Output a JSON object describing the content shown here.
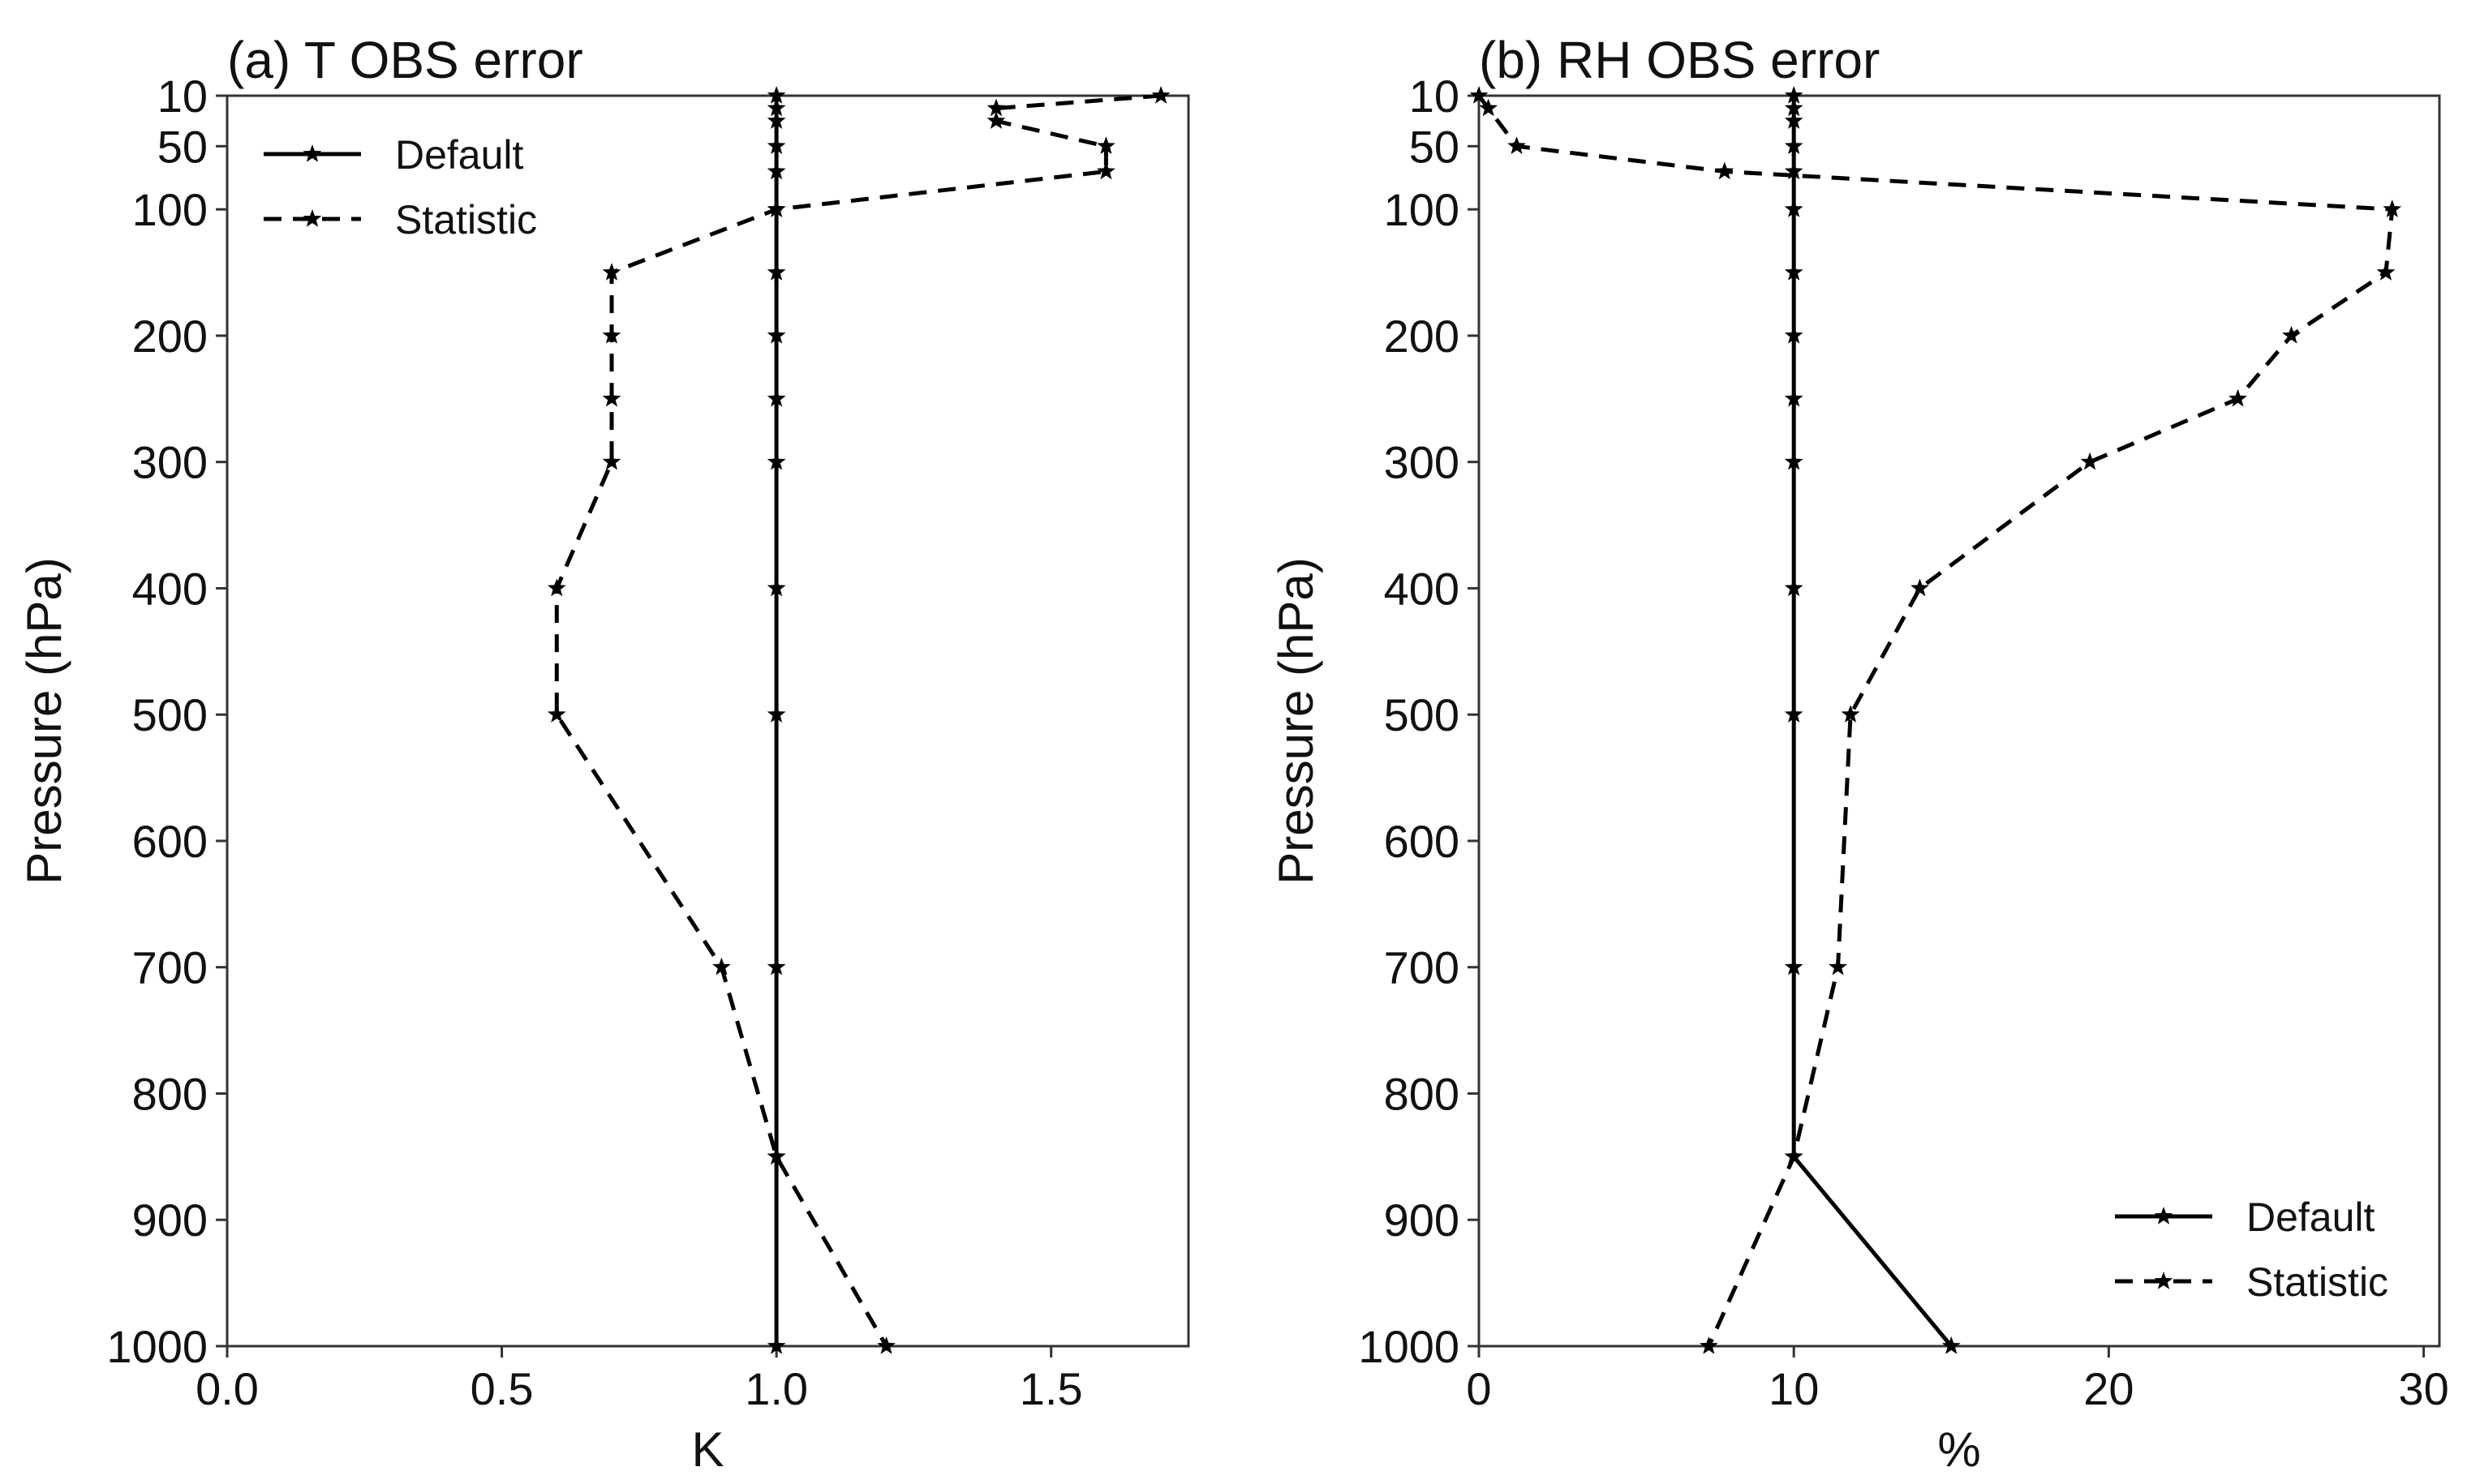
{
  "chart_data": [
    {
      "type": "line",
      "title": "(a) T OBS error",
      "xlabel": "K",
      "ylabel": "Pressure (hPa)",
      "xlim": [
        0.0,
        1.75
      ],
      "ylim": [
        1000,
        10
      ],
      "y_inverted": true,
      "x_ticks": [
        0.0,
        0.5,
        1.0,
        1.5
      ],
      "x_tick_labels": [
        "0.0",
        "0.5",
        "1.0",
        "1.5"
      ],
      "y_ticks": [
        10,
        50,
        100,
        200,
        300,
        400,
        500,
        600,
        700,
        800,
        900,
        1000
      ],
      "y_tick_labels": [
        "10",
        "50",
        "100",
        "200",
        "300",
        "400",
        "500",
        "600",
        "700",
        "800",
        "900",
        "1000"
      ],
      "grid": false,
      "legend": {
        "position": "top-left",
        "entries": [
          "Default",
          "Statistic"
        ]
      },
      "series": [
        {
          "name": "Default",
          "style": "solid-star",
          "points": [
            {
              "x": 1.0,
              "y": 10
            },
            {
              "x": 1.0,
              "y": 20
            },
            {
              "x": 1.0,
              "y": 30
            },
            {
              "x": 1.0,
              "y": 50
            },
            {
              "x": 1.0,
              "y": 70
            },
            {
              "x": 1.0,
              "y": 100
            },
            {
              "x": 1.0,
              "y": 150
            },
            {
              "x": 1.0,
              "y": 200
            },
            {
              "x": 1.0,
              "y": 250
            },
            {
              "x": 1.0,
              "y": 300
            },
            {
              "x": 1.0,
              "y": 400
            },
            {
              "x": 1.0,
              "y": 500
            },
            {
              "x": 1.0,
              "y": 700
            },
            {
              "x": 1.0,
              "y": 850
            },
            {
              "x": 1.0,
              "y": 1000
            }
          ]
        },
        {
          "name": "Statistic",
          "style": "dashed-star",
          "points": [
            {
              "x": 1.7,
              "y": 10
            },
            {
              "x": 1.4,
              "y": 20
            },
            {
              "x": 1.4,
              "y": 30
            },
            {
              "x": 1.6,
              "y": 50
            },
            {
              "x": 1.6,
              "y": 70
            },
            {
              "x": 1.0,
              "y": 100
            },
            {
              "x": 0.7,
              "y": 150
            },
            {
              "x": 0.7,
              "y": 200
            },
            {
              "x": 0.7,
              "y": 250
            },
            {
              "x": 0.7,
              "y": 300
            },
            {
              "x": 0.6,
              "y": 400
            },
            {
              "x": 0.6,
              "y": 500
            },
            {
              "x": 0.9,
              "y": 700
            },
            {
              "x": 1.0,
              "y": 850
            },
            {
              "x": 1.2,
              "y": 1000
            }
          ]
        }
      ]
    },
    {
      "type": "line",
      "title": "(b) RH OBS error",
      "xlabel": "%",
      "ylabel": "Pressure (hPa)",
      "xlim": [
        0,
        30.5
      ],
      "ylim": [
        1000,
        10
      ],
      "y_inverted": true,
      "x_ticks": [
        0,
        10,
        20,
        30
      ],
      "x_tick_labels": [
        "0",
        "10",
        "20",
        "30"
      ],
      "y_ticks": [
        10,
        50,
        100,
        200,
        300,
        400,
        500,
        600,
        700,
        800,
        900,
        1000
      ],
      "y_tick_labels": [
        "10",
        "50",
        "100",
        "200",
        "300",
        "400",
        "500",
        "600",
        "700",
        "800",
        "900",
        "1000"
      ],
      "grid": false,
      "legend": {
        "position": "bottom-right",
        "entries": [
          "Default",
          "Statistic"
        ]
      },
      "series": [
        {
          "name": "Default",
          "style": "solid-star",
          "points": [
            {
              "x": 10,
              "y": 10
            },
            {
              "x": 10,
              "y": 20
            },
            {
              "x": 10,
              "y": 30
            },
            {
              "x": 10,
              "y": 50
            },
            {
              "x": 10,
              "y": 70
            },
            {
              "x": 10,
              "y": 100
            },
            {
              "x": 10,
              "y": 150
            },
            {
              "x": 10,
              "y": 200
            },
            {
              "x": 10,
              "y": 250
            },
            {
              "x": 10,
              "y": 300
            },
            {
              "x": 10,
              "y": 400
            },
            {
              "x": 10,
              "y": 500
            },
            {
              "x": 10,
              "y": 700
            },
            {
              "x": 10,
              "y": 850
            },
            {
              "x": 15,
              "y": 1000
            }
          ]
        },
        {
          "name": "Statistic",
          "style": "dashed-star",
          "points": [
            {
              "x": 0.0,
              "y": 10
            },
            {
              "x": 0.3,
              "y": 20
            },
            {
              "x": 1.2,
              "y": 50
            },
            {
              "x": 7.8,
              "y": 70
            },
            {
              "x": 29.0,
              "y": 100
            },
            {
              "x": 28.8,
              "y": 150
            },
            {
              "x": 25.8,
              "y": 200
            },
            {
              "x": 24.1,
              "y": 250
            },
            {
              "x": 19.4,
              "y": 300
            },
            {
              "x": 14.0,
              "y": 400
            },
            {
              "x": 11.8,
              "y": 500
            },
            {
              "x": 11.4,
              "y": 700
            },
            {
              "x": 10.0,
              "y": 850
            },
            {
              "x": 7.3,
              "y": 1000
            }
          ]
        }
      ]
    }
  ]
}
